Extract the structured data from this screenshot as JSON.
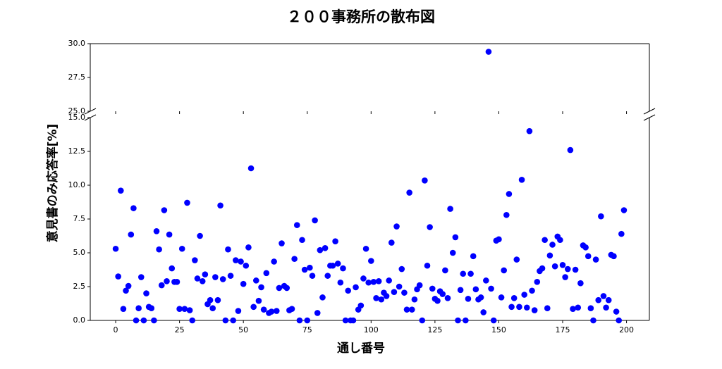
{
  "chart_data": {
    "type": "scatter",
    "title": "２００事務所の散布図",
    "xlabel": "通し番号",
    "ylabel": "意見書のみ応答率[%]",
    "color": "#0000ff",
    "x": [
      0,
      1,
      2,
      3,
      4,
      5,
      6,
      7,
      8,
      9,
      10,
      11,
      12,
      13,
      14,
      15,
      16,
      17,
      18,
      19,
      20,
      21,
      22,
      23,
      24,
      25,
      26,
      27,
      28,
      29,
      30,
      31,
      32,
      33,
      34,
      35,
      36,
      37,
      38,
      39,
      40,
      41,
      42,
      43,
      44,
      45,
      46,
      47,
      48,
      49,
      50,
      51,
      52,
      53,
      54,
      55,
      56,
      57,
      58,
      59,
      60,
      61,
      62,
      63,
      64,
      65,
      66,
      67,
      68,
      69,
      70,
      71,
      72,
      73,
      74,
      75,
      76,
      77,
      78,
      79,
      80,
      81,
      82,
      83,
      84,
      85,
      86,
      87,
      88,
      89,
      90,
      91,
      92,
      93,
      94,
      95,
      96,
      97,
      98,
      99,
      100,
      101,
      102,
      103,
      104,
      105,
      106,
      107,
      108,
      109,
      110,
      111,
      112,
      113,
      114,
      115,
      116,
      117,
      118,
      119,
      120,
      121,
      122,
      123,
      124,
      125,
      126,
      127,
      128,
      129,
      130,
      131,
      132,
      133,
      134,
      135,
      136,
      137,
      138,
      139,
      140,
      141,
      142,
      143,
      144,
      145,
      146,
      147,
      148,
      149,
      150,
      151,
      152,
      153,
      154,
      155,
      156,
      157,
      158,
      159,
      160,
      161,
      162,
      163,
      164,
      165,
      166,
      167,
      168,
      169,
      170,
      171,
      172,
      173,
      174,
      175,
      176,
      177,
      178,
      179,
      180,
      181,
      182,
      183,
      184,
      185,
      186,
      187,
      188,
      189,
      190,
      191,
      192,
      193,
      194,
      195,
      196,
      197,
      198,
      199
    ],
    "values": [
      5.3,
      3.25,
      9.6,
      0.85,
      2.2,
      2.55,
      6.35,
      8.3,
      0,
      0.9,
      3.2,
      0,
      2,
      1,
      0.9,
      0,
      6.6,
      5.25,
      2.6,
      8.15,
      2.9,
      6.35,
      3.85,
      2.85,
      2.85,
      0.85,
      5.3,
      0.85,
      8.7,
      0.75,
      0,
      4.45,
      3.1,
      6.25,
      2.9,
      3.4,
      1.2,
      1.5,
      0.9,
      3.2,
      1.5,
      8.5,
      3.05,
      0,
      5.25,
      3.3,
      0,
      4.45,
      0.7,
      4.35,
      2.7,
      4.05,
      5.4,
      11.25,
      1,
      2.95,
      1.45,
      2.45,
      0.8,
      3.5,
      0.55,
      0.65,
      4.35,
      0.7,
      2.4,
      5.7,
      2.55,
      2.4,
      0.75,
      0.85,
      4.55,
      7.05,
      0,
      5.95,
      3.75,
      0,
      3.9,
      3.3,
      7.4,
      0.55,
      5.2,
      1.7,
      5.35,
      3.3,
      4.05,
      4.05,
      5.85,
      4.2,
      2.8,
      3.85,
      0,
      2.2,
      0,
      0,
      2.45,
      0.8,
      1.1,
      3.1,
      5.3,
      2.8,
      4.4,
      2.85,
      1.65,
      2.9,
      1.55,
      2.05,
      1.8,
      2.95,
      5.75,
      2.1,
      6.95,
      2.5,
      3.8,
      2.05,
      0.8,
      9.45,
      0.8,
      1.55,
      2.3,
      2.6,
      0,
      10.35,
      4.05,
      6.9,
      2.35,
      1.6,
      1.45,
      2.15,
      1.95,
      3.7,
      1.65,
      8.25,
      5,
      6.15,
      0,
      2.25,
      3.45,
      0,
      1.6,
      3.45,
      4.75,
      2.3,
      1.55,
      1.7,
      0.6,
      2.95,
      29.4,
      2.35,
      0,
      5.9,
      6,
      1.7,
      3.7,
      7.8,
      9.35,
      1,
      1.65,
      4.5,
      1,
      10.4,
      1.9,
      0.95,
      14,
      2.2,
      0.75,
      2.85,
      3.65,
      3.85,
      5.95,
      0.9,
      4.8,
      5.6,
      4,
      6.2,
      5.95,
      4.1,
      3.2,
      3.8,
      12.6,
      0.85,
      3.75,
      0.95,
      2.75,
      5.55,
      5.4,
      4.75,
      0.9,
      0,
      4.5,
      1.5,
      7.7,
      1.8,
      0.95,
      1.5,
      4.85,
      4.75,
      0.65,
      0,
      6.4,
      8.15
    ],
    "xlim": [
      -9.95,
      208.95
    ],
    "xticks": [
      0,
      25,
      50,
      75,
      100,
      125,
      150,
      175,
      200
    ],
    "ylim": [
      0,
      15
    ],
    "yticks": [
      {
        "value": 0,
        "label": "0.0"
      },
      2.5,
      {
        "value": 5,
        "label": "5.0"
      },
      7.5,
      {
        "value": 10,
        "label": "10.0"
      },
      12.5,
      {
        "value": 15,
        "label": "15.0"
      }
    ],
    "axis_break": {
      "ylim": [
        25,
        30
      ],
      "yticks": [
        {
          "value": 25,
          "label": "25.0"
        },
        27.5,
        {
          "value": 30,
          "label": "30.0"
        }
      ]
    }
  }
}
